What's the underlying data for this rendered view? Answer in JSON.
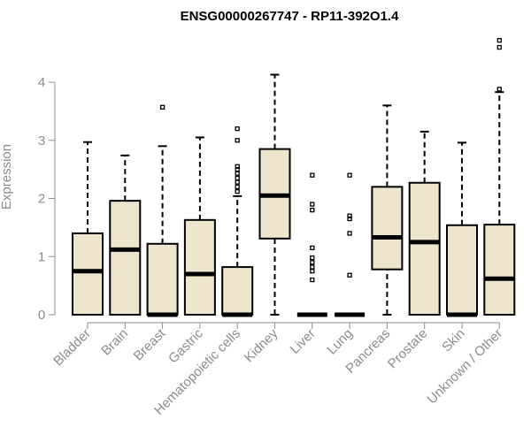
{
  "chart_data": {
    "type": "box",
    "title": "ENSG00000267747 - RP11-392O1.4",
    "xlabel": "",
    "ylabel": "Expression",
    "ylim": [
      0,
      4.8
    ],
    "yticks": [
      0,
      1,
      2,
      3,
      4
    ],
    "grid": false,
    "box_color": "#ede6cc",
    "categories": [
      "Bladder",
      "Brain",
      "Breast",
      "Gastric",
      "Hematopoietic cells",
      "Kidney",
      "Liver",
      "Lung",
      "Pancreas",
      "Prostate",
      "Skin",
      "Unknown / Other"
    ],
    "boxes": [
      {
        "category": "Bladder",
        "min": 0,
        "q1": 0,
        "median": 0.75,
        "q3": 1.4,
        "max": 2.97,
        "outliers": []
      },
      {
        "category": "Brain",
        "min": 0,
        "q1": 0,
        "median": 1.12,
        "q3": 1.96,
        "max": 2.74,
        "outliers": []
      },
      {
        "category": "Breast",
        "min": 0,
        "q1": 0,
        "median": 0,
        "q3": 1.22,
        "max": 2.9,
        "outliers": [
          3.57
        ]
      },
      {
        "category": "Gastric",
        "min": 0,
        "q1": 0,
        "median": 0.7,
        "q3": 1.63,
        "max": 3.05,
        "outliers": []
      },
      {
        "category": "Hematopoietic cells",
        "min": 0,
        "q1": 0,
        "median": 0,
        "q3": 0.82,
        "max": 2.04,
        "outliers": [
          2.12,
          2.2,
          2.28,
          2.35,
          2.43,
          2.5,
          2.55,
          3.0,
          3.2
        ]
      },
      {
        "category": "Kidney",
        "min": 0,
        "q1": 1.31,
        "median": 2.05,
        "q3": 2.85,
        "max": 4.13,
        "outliers": []
      },
      {
        "category": "Liver",
        "min": 0,
        "q1": 0,
        "median": 0,
        "q3": 0,
        "max": 0,
        "outliers": [
          0.6,
          0.75,
          0.82,
          0.9,
          0.98,
          1.15,
          1.8,
          1.9,
          2.4
        ]
      },
      {
        "category": "Lung",
        "min": 0,
        "q1": 0,
        "median": 0,
        "q3": 0,
        "max": 0,
        "outliers": [
          0.68,
          1.4,
          1.65,
          1.7,
          2.4
        ]
      },
      {
        "category": "Pancreas",
        "min": 0,
        "q1": 0.78,
        "median": 1.33,
        "q3": 2.2,
        "max": 3.6,
        "outliers": []
      },
      {
        "category": "Prostate",
        "min": 0,
        "q1": 0,
        "median": 1.25,
        "q3": 2.27,
        "max": 3.15,
        "outliers": []
      },
      {
        "category": "Skin",
        "min": 0,
        "q1": 0,
        "median": 0,
        "q3": 1.54,
        "max": 2.96,
        "outliers": []
      },
      {
        "category": "Unknown / Other",
        "min": 0,
        "q1": 0,
        "median": 0.62,
        "q3": 1.55,
        "max": 3.83,
        "outliers": [
          3.88,
          4.6,
          4.72
        ]
      }
    ]
  }
}
